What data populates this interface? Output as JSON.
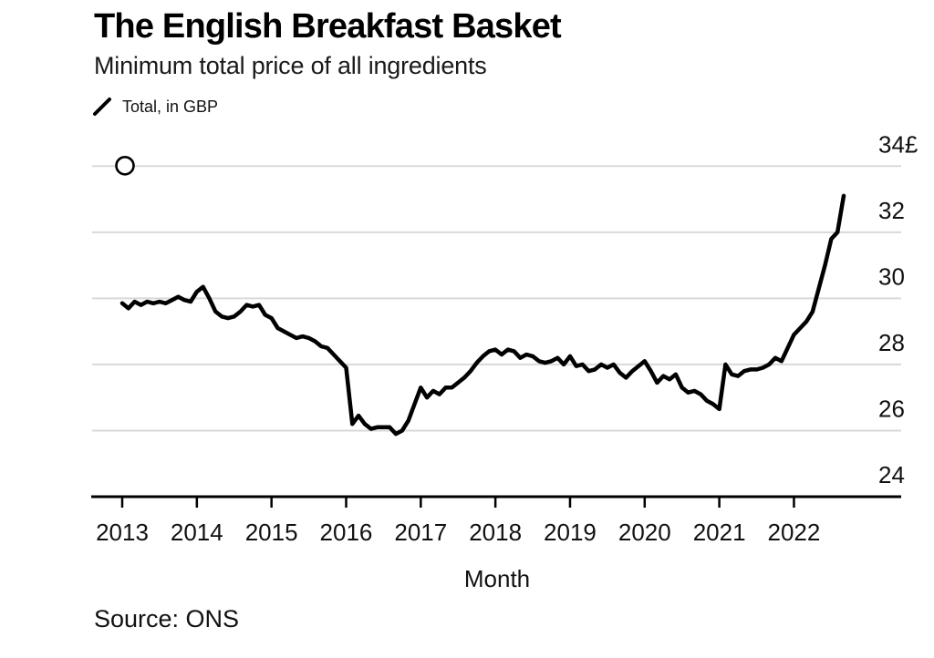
{
  "header": {
    "title": "The English Breakfast Basket",
    "subtitle": "Minimum total price of all ingredients"
  },
  "legend": {
    "marker_icon": "diagonal-line-icon",
    "label": "Total, in GBP"
  },
  "footer": {
    "source": "Source: ONS"
  },
  "colors": {
    "line": "#000000",
    "grid": "#d9d9d9",
    "axis": "#000000",
    "text": "#111111",
    "marker_fill": "#ffffff"
  },
  "chart_data": {
    "type": "line",
    "title": "The English Breakfast Basket",
    "subtitle": "Minimum total price of all ingredients",
    "series_name": "Total, in GBP",
    "xlabel": "Month",
    "ylabel": "GBP (£)",
    "x_start": "2013-01",
    "x_end": "2022-09",
    "frequency": "monthly",
    "ylim": [
      24,
      34
    ],
    "grid": true,
    "legend_position": "top-left",
    "y_ticks": [
      {
        "value": 24,
        "label": "24"
      },
      {
        "value": 26,
        "label": "26"
      },
      {
        "value": 28,
        "label": "28"
      },
      {
        "value": 30,
        "label": "30"
      },
      {
        "value": 32,
        "label": "32"
      },
      {
        "value": 34,
        "label": "34£"
      }
    ],
    "x_tick_years": [
      "2013",
      "2014",
      "2015",
      "2016",
      "2017",
      "2018",
      "2019",
      "2020",
      "2021",
      "2022"
    ],
    "annotations": [
      {
        "name": "open-circle-handle",
        "x": "2013-01",
        "y": 34
      }
    ],
    "values": [
      29.85,
      29.7,
      29.9,
      29.8,
      29.9,
      29.85,
      29.9,
      29.85,
      29.95,
      30.05,
      29.95,
      29.9,
      30.2,
      30.35,
      30.0,
      29.6,
      29.45,
      29.4,
      29.45,
      29.6,
      29.8,
      29.75,
      29.8,
      29.5,
      29.4,
      29.1,
      29.0,
      28.9,
      28.8,
      28.85,
      28.8,
      28.7,
      28.55,
      28.5,
      28.3,
      28.1,
      27.9,
      26.2,
      26.45,
      26.2,
      26.05,
      26.1,
      26.1,
      26.1,
      25.9,
      26.0,
      26.3,
      26.8,
      27.3,
      27.0,
      27.2,
      27.1,
      27.3,
      27.3,
      27.45,
      27.6,
      27.8,
      28.05,
      28.25,
      28.4,
      28.45,
      28.3,
      28.45,
      28.4,
      28.2,
      28.3,
      28.25,
      28.1,
      28.05,
      28.1,
      28.2,
      28.0,
      28.25,
      27.95,
      28.0,
      27.8,
      27.85,
      28.0,
      27.9,
      28.0,
      27.75,
      27.6,
      27.8,
      27.95,
      28.1,
      27.8,
      27.45,
      27.65,
      27.55,
      27.7,
      27.3,
      27.15,
      27.2,
      27.1,
      26.9,
      26.8,
      26.65,
      28.0,
      27.7,
      27.65,
      27.8,
      27.85,
      27.85,
      27.9,
      28.0,
      28.2,
      28.1,
      28.5,
      28.9,
      29.1,
      29.3,
      29.6,
      30.3,
      31.0,
      31.8,
      32.0,
      33.1
    ]
  }
}
